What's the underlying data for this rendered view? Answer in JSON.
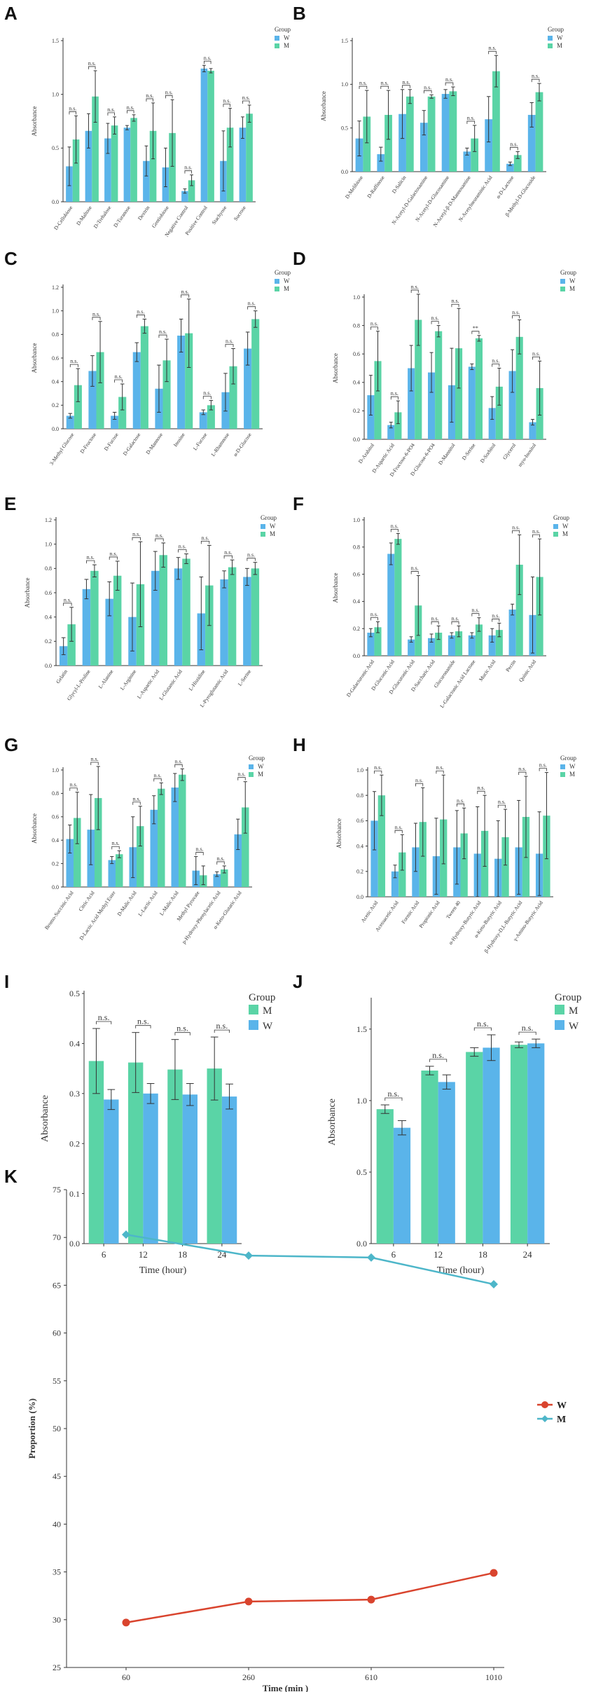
{
  "colors": {
    "W": "#5ab4ea",
    "M": "#5ad4a6",
    "axis": "#333333",
    "err": "#333333",
    "line_W": "#d9442e",
    "line_M": "#4db6c9"
  },
  "chart_data": [
    {
      "panel": "A",
      "type": "bar",
      "ylabel": "Absorbance",
      "ylim": [
        0,
        1.5
      ],
      "yticks": [
        0,
        0.5,
        1.0,
        1.5
      ],
      "legend_title": "Group",
      "categories": [
        "D-Cellobiose",
        "D-Maltose",
        "D-Trehalose",
        "D-Turanose",
        "Dextrin",
        "Gentiobiose",
        "Negative Control",
        "Positive Control",
        "Stachyose",
        "Sucrose"
      ],
      "series": [
        {
          "name": "W",
          "values": [
            0.33,
            0.66,
            0.59,
            0.69,
            0.38,
            0.32,
            0.1,
            1.24,
            0.38,
            0.69
          ],
          "errors": [
            0.18,
            0.16,
            0.14,
            0.02,
            0.14,
            0.18,
            0.02,
            0.03,
            0.28,
            0.1
          ]
        },
        {
          "name": "M",
          "values": [
            0.58,
            0.98,
            0.71,
            0.78,
            0.66,
            0.64,
            0.2,
            1.22,
            0.69,
            0.82
          ],
          "errors": [
            0.22,
            0.24,
            0.08,
            0.03,
            0.26,
            0.31,
            0.05,
            0.02,
            0.18,
            0.08
          ]
        }
      ],
      "sig": [
        "n.s.",
        "n.s.",
        "n.s.",
        "n.s.",
        "n.s.",
        "n.s.",
        "n.s.",
        "n.s.",
        "n.s.",
        "n.s."
      ]
    },
    {
      "panel": "B",
      "type": "bar",
      "ylabel": "Absorbance",
      "ylim": [
        0,
        1.5
      ],
      "yticks": [
        0,
        0.5,
        1.0,
        1.5
      ],
      "legend_title": "Group",
      "categories": [
        "D-Melibiose",
        "D-Raffinose",
        "D-Salicin",
        "N-Acetyl-D-Galactosamine",
        "N-Acetyl-D-Glucosamine",
        "N-Acetyl-β-D-Mannosamine",
        "N-Acetylneuraminic Acid",
        "α-D-Lactose",
        "β-Methyl-D-Glucoside"
      ],
      "series": [
        {
          "name": "W",
          "values": [
            0.38,
            0.2,
            0.66,
            0.56,
            0.89,
            0.23,
            0.6,
            0.09,
            0.65
          ],
          "errors": [
            0.2,
            0.08,
            0.28,
            0.14,
            0.05,
            0.04,
            0.26,
            0.02,
            0.14
          ]
        },
        {
          "name": "M",
          "values": [
            0.63,
            0.65,
            0.86,
            0.86,
            0.92,
            0.38,
            1.15,
            0.19,
            0.91
          ],
          "errors": [
            0.3,
            0.28,
            0.08,
            0.02,
            0.05,
            0.15,
            0.18,
            0.04,
            0.1
          ]
        }
      ],
      "sig": [
        "n.s.",
        "n.s.",
        "n.s.",
        "n.s.",
        "n.s.",
        "n.s.",
        "n.s.",
        "n.s.",
        "n.s."
      ]
    },
    {
      "panel": "C",
      "type": "bar",
      "ylabel": "Absorbance",
      "ylim": [
        0,
        1.2
      ],
      "yticks": [
        0,
        0.2,
        0.4,
        0.6,
        0.8,
        1.0,
        1.2
      ],
      "legend_title": "Group",
      "categories": [
        "3-Methyl Glucose",
        "D-Fructose",
        "D-Fucose",
        "D-Galactose",
        "D-Mannose",
        "Inosine",
        "L-Fucose",
        "L-Rhamnose",
        "α-D-Glucose"
      ],
      "series": [
        {
          "name": "W",
          "values": [
            0.11,
            0.49,
            0.11,
            0.65,
            0.34,
            0.79,
            0.14,
            0.31,
            0.68
          ],
          "errors": [
            0.02,
            0.13,
            0.03,
            0.08,
            0.2,
            0.14,
            0.02,
            0.16,
            0.14
          ]
        },
        {
          "name": "M",
          "values": [
            0.37,
            0.65,
            0.27,
            0.87,
            0.58,
            0.81,
            0.2,
            0.53,
            0.93
          ],
          "errors": [
            0.14,
            0.26,
            0.11,
            0.06,
            0.18,
            0.29,
            0.04,
            0.15,
            0.07
          ]
        }
      ],
      "sig": [
        "n.s.",
        "n.s.",
        "n.s.",
        "n.s.",
        "n.s.",
        "n.s.",
        "n.s.",
        "n.s.",
        "n.s."
      ]
    },
    {
      "panel": "D",
      "type": "bar",
      "ylabel": "Absorbance",
      "ylim": [
        0,
        1.0
      ],
      "yticks": [
        0,
        0.2,
        0.4,
        0.6,
        0.8,
        1.0
      ],
      "legend_title": "Group",
      "categories": [
        "D-Arabitol",
        "D-Aspartic Acid",
        "D-Fructose-6-PO4",
        "D-Glucose-6-PO4",
        "D-Mannitol",
        "D-Serine",
        "D-Sorbitol",
        "Glycerol",
        "myo-Inositol"
      ],
      "series": [
        {
          "name": "W",
          "values": [
            0.31,
            0.1,
            0.5,
            0.47,
            0.38,
            0.51,
            0.22,
            0.48,
            0.12
          ],
          "errors": [
            0.14,
            0.02,
            0.16,
            0.14,
            0.26,
            0.02,
            0.08,
            0.15,
            0.02
          ]
        },
        {
          "name": "M",
          "values": [
            0.55,
            0.19,
            0.84,
            0.76,
            0.64,
            0.71,
            0.37,
            0.72,
            0.36
          ],
          "errors": [
            0.21,
            0.08,
            0.18,
            0.04,
            0.28,
            0.02,
            0.13,
            0.12,
            0.19
          ]
        }
      ],
      "sig": [
        "n.s.",
        "n.s.",
        "n.s.",
        "n.s.",
        "n.s.",
        "**",
        "n.s.",
        "n.s.",
        "n.s."
      ]
    },
    {
      "panel": "E",
      "type": "bar",
      "ylabel": "Absorbance",
      "ylim": [
        0,
        1.2
      ],
      "yticks": [
        0,
        0.2,
        0.4,
        0.6,
        0.8,
        1.0,
        1.2
      ],
      "legend_title": "Group",
      "categories": [
        "Gelatin",
        "Glycyl-L-Proline",
        "L-Alanine",
        "L-Arginine",
        "L-Aspartic Acid",
        "L-Glutamic Acid",
        "L-Histidine",
        "L-Pyroglutamic Acid",
        "L-Serine"
      ],
      "series": [
        {
          "name": "W",
          "values": [
            0.16,
            0.63,
            0.55,
            0.4,
            0.78,
            0.8,
            0.43,
            0.71,
            0.73
          ],
          "errors": [
            0.07,
            0.08,
            0.14,
            0.28,
            0.16,
            0.09,
            0.3,
            0.07,
            0.07
          ]
        },
        {
          "name": "M",
          "values": [
            0.34,
            0.78,
            0.74,
            0.67,
            0.91,
            0.88,
            0.66,
            0.81,
            0.8
          ],
          "errors": [
            0.14,
            0.05,
            0.12,
            0.35,
            0.1,
            0.04,
            0.33,
            0.06,
            0.05
          ]
        }
      ],
      "sig": [
        "n.s.",
        "n.s.",
        "n.s.",
        "n.s.",
        "n.s.",
        "n.s.",
        "n.s.",
        "n.s.",
        "n.s."
      ]
    },
    {
      "panel": "F",
      "type": "bar",
      "ylabel": "Absorbance",
      "ylim": [
        0,
        1.0
      ],
      "yticks": [
        0,
        0.2,
        0.4,
        0.6,
        0.8,
        1.0
      ],
      "legend_title": "Group",
      "categories": [
        "D-Galacturonic Acid",
        "D-Gluconic Acid",
        "D-Glucuronic Acid",
        "D-Saccharic Acid",
        "Glucuronamide",
        "L-Galactonic Acid Lactone",
        "Mucic Acid",
        "Pectin",
        "Quinic Acid"
      ],
      "series": [
        {
          "name": "W",
          "values": [
            0.17,
            0.75,
            0.12,
            0.13,
            0.15,
            0.15,
            0.15,
            0.34,
            0.3
          ],
          "errors": [
            0.03,
            0.08,
            0.02,
            0.03,
            0.02,
            0.02,
            0.05,
            0.04,
            0.28
          ]
        },
        {
          "name": "M",
          "values": [
            0.21,
            0.86,
            0.37,
            0.17,
            0.18,
            0.23,
            0.19,
            0.67,
            0.58
          ],
          "errors": [
            0.04,
            0.04,
            0.22,
            0.05,
            0.04,
            0.05,
            0.05,
            0.22,
            0.28
          ]
        }
      ],
      "sig": [
        "n.s.",
        "n.s.",
        "n.s.",
        "n.s.",
        "n.s.",
        "n.s.",
        "n.s.",
        "n.s.",
        "n.s."
      ]
    },
    {
      "panel": "G",
      "type": "bar",
      "ylabel": "Absorbance",
      "ylim": [
        0,
        1.0
      ],
      "yticks": [
        0,
        0.2,
        0.4,
        0.6,
        0.8,
        1.0
      ],
      "legend_title": "Group",
      "categories": [
        "Bromo-Succinic Acid",
        "Citric Acid",
        "D-Lactic Acid Methyl Ester",
        "D-Malic Acid",
        "L-Lactic Acid",
        "L-Malic Acid",
        "Methyl Pyruvate",
        "p-Hydroxy-Phenylacetic Acid",
        "α-Keto-Glutaric Acid"
      ],
      "series": [
        {
          "name": "W",
          "values": [
            0.41,
            0.49,
            0.23,
            0.34,
            0.66,
            0.85,
            0.14,
            0.11,
            0.45
          ],
          "errors": [
            0.12,
            0.3,
            0.03,
            0.26,
            0.12,
            0.12,
            0.12,
            0.02,
            0.13
          ]
        },
        {
          "name": "M",
          "values": [
            0.59,
            0.76,
            0.28,
            0.52,
            0.84,
            0.96,
            0.1,
            0.15,
            0.68
          ],
          "errors": [
            0.22,
            0.27,
            0.03,
            0.17,
            0.05,
            0.05,
            0.08,
            0.03,
            0.22
          ]
        }
      ],
      "sig": [
        "n.s.",
        "n.s.",
        "n.s.",
        "n.s.",
        "n.s.",
        "n.s.",
        "n.s.",
        "n.s.",
        "n.s."
      ]
    },
    {
      "panel": "H",
      "type": "bar",
      "ylabel": "Absorbance",
      "ylim": [
        0,
        1.0
      ],
      "yticks": [
        0,
        0.2,
        0.4,
        0.6,
        0.8,
        1.0
      ],
      "legend_title": "Group",
      "categories": [
        "Acetic Acid",
        "Acetoacetic Acid",
        "Formic Acid",
        "Propionic Acid",
        "Tween 40",
        "α-Hydroxy-Butyric Acid",
        "α-Keto-Butyric Acid",
        "β-Hydroxy-D,L-Butyric Acid",
        "γ-Amino-Butyric Acid"
      ],
      "series": [
        {
          "name": "W",
          "values": [
            0.6,
            0.2,
            0.39,
            0.32,
            0.39,
            0.34,
            0.3,
            0.39,
            0.34
          ],
          "errors": [
            0.23,
            0.05,
            0.19,
            0.3,
            0.29,
            0.37,
            0.3,
            0.37,
            0.33
          ]
        },
        {
          "name": "M",
          "values": [
            0.8,
            0.35,
            0.59,
            0.61,
            0.5,
            0.52,
            0.47,
            0.63,
            0.64
          ],
          "errors": [
            0.16,
            0.14,
            0.27,
            0.35,
            0.2,
            0.28,
            0.22,
            0.32,
            0.34
          ]
        }
      ],
      "sig": [
        "n.s.",
        "n.s.",
        "n.s.",
        "n.s.",
        "n.s.",
        "n.s.",
        "n.s.",
        "n.s.",
        "n.s."
      ]
    },
    {
      "panel": "I",
      "type": "bar",
      "ylabel": "Absorbance",
      "xlabel": "Time (hour)",
      "ylim": [
        0,
        0.5
      ],
      "yticks": [
        0.0,
        0.1,
        0.2,
        0.3,
        0.4,
        0.5
      ],
      "legend_title": "Group",
      "categories": [
        "6",
        "12",
        "18",
        "24"
      ],
      "series": [
        {
          "name": "M",
          "values": [
            0.365,
            0.362,
            0.348,
            0.35
          ],
          "errors": [
            0.065,
            0.06,
            0.06,
            0.063
          ]
        },
        {
          "name": "W",
          "values": [
            0.288,
            0.3,
            0.298,
            0.294
          ],
          "errors": [
            0.02,
            0.02,
            0.022,
            0.025
          ]
        }
      ],
      "sig": [
        "n.s.",
        "n.s.",
        "n.s.",
        "n.s."
      ]
    },
    {
      "panel": "J",
      "type": "bar",
      "ylabel": "Absorbance",
      "xlabel": "Time (hour)",
      "ylim": [
        0,
        1.7
      ],
      "yticks": [
        0.0,
        0.5,
        1.0,
        1.5
      ],
      "legend_title": "Group",
      "categories": [
        "6",
        "12",
        "18",
        "24"
      ],
      "series": [
        {
          "name": "M",
          "values": [
            0.94,
            1.21,
            1.34,
            1.39
          ],
          "errors": [
            0.03,
            0.03,
            0.03,
            0.02
          ]
        },
        {
          "name": "W",
          "values": [
            0.81,
            1.13,
            1.37,
            1.4
          ],
          "errors": [
            0.05,
            0.05,
            0.09,
            0.03
          ]
        }
      ],
      "sig": [
        "n.s.",
        "n.s.",
        "n.s.",
        "n.s."
      ]
    },
    {
      "panel": "K",
      "type": "line",
      "ylabel": "Proportion (%)",
      "xlabel": "Time (min )",
      "ylim": [
        25,
        75
      ],
      "yticks": [
        25,
        30,
        35,
        40,
        45,
        50,
        55,
        60,
        65,
        70,
        75
      ],
      "x": [
        "60",
        "260",
        "610",
        "1010"
      ],
      "series": [
        {
          "name": "W",
          "values": [
            29.7,
            31.9,
            32.1,
            34.9
          ]
        },
        {
          "name": "M",
          "values": [
            70.3,
            68.1,
            67.9,
            65.1
          ]
        }
      ]
    }
  ]
}
